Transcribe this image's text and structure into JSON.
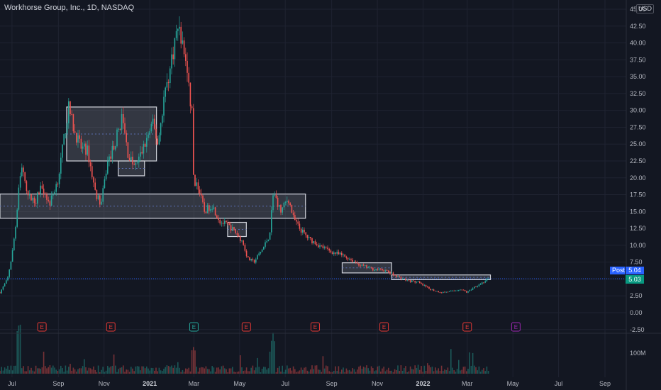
{
  "header": {
    "title": "Workhorse Group, Inc., 1D, NASDAQ",
    "currency": "USD"
  },
  "price_tags": {
    "post_label": "Post",
    "post_value": "5.04",
    "last_value": "5.03"
  },
  "colors": {
    "background": "#131722",
    "up": "#26a69a",
    "down": "#ef5350",
    "grid": "#1f2331",
    "zone_fill": "#787b86",
    "post_blue": "#2962ff",
    "earnings_red": "#e53935",
    "earnings_green": "#26a69a",
    "earnings_purple": "#9c27b0"
  },
  "chart_data": {
    "type": "candlestick",
    "title": "Workhorse Group, Inc., 1D, NASDAQ",
    "x_tick_labels": [
      "Jul",
      "Sep",
      "Nov",
      "2021",
      "Mar",
      "May",
      "Jul",
      "Sep",
      "Nov",
      "2022",
      "Mar",
      "May",
      "Jul",
      "Sep"
    ],
    "y_tick_labels": [
      "45.00",
      "42.50",
      "40.00",
      "37.50",
      "35.00",
      "32.50",
      "30.00",
      "27.50",
      "25.00",
      "22.50",
      "20.00",
      "17.50",
      "15.00",
      "12.50",
      "10.00",
      "7.50",
      "5.00",
      "2.50",
      "0.00",
      "-2.50"
    ],
    "y_range": [
      -2.5,
      45
    ],
    "volume_tick_label": "100M",
    "price_path": [
      [
        "2020-06-15",
        3.0
      ],
      [
        "2020-06-25",
        5.0
      ],
      [
        "2020-07-01",
        8.5
      ],
      [
        "2020-07-06",
        13.0
      ],
      [
        "2020-07-10",
        18.5
      ],
      [
        "2020-07-15",
        22.3
      ],
      [
        "2020-07-20",
        17.5
      ],
      [
        "2020-08-01",
        16.5
      ],
      [
        "2020-08-10",
        19.0
      ],
      [
        "2020-08-20",
        16.0
      ],
      [
        "2020-09-01",
        20.0
      ],
      [
        "2020-09-10",
        27.0
      ],
      [
        "2020-09-15",
        30.5
      ],
      [
        "2020-09-22",
        27.0
      ],
      [
        "2020-10-01",
        24.5
      ],
      [
        "2020-10-10",
        24.0
      ],
      [
        "2020-10-20",
        18.0
      ],
      [
        "2020-10-28",
        16.0
      ],
      [
        "2020-11-05",
        22.0
      ],
      [
        "2020-11-15",
        25.0
      ],
      [
        "2020-11-25",
        29.0
      ],
      [
        "2020-12-03",
        23.5
      ],
      [
        "2020-12-12",
        21.5
      ],
      [
        "2020-12-22",
        24.0
      ],
      [
        "2021-01-05",
        28.0
      ],
      [
        "2021-01-12",
        25.0
      ],
      [
        "2021-01-20",
        32.0
      ],
      [
        "2021-01-28",
        36.0
      ],
      [
        "2021-02-03",
        40.0
      ],
      [
        "2021-02-08",
        42.5
      ],
      [
        "2021-02-12",
        40.5
      ],
      [
        "2021-02-18",
        37.5
      ],
      [
        "2021-02-24",
        31.0
      ],
      [
        "2021-02-26",
        31.5
      ],
      [
        "2021-03-01",
        17.5
      ],
      [
        "2021-03-05",
        19.5
      ],
      [
        "2021-03-15",
        15.0
      ],
      [
        "2021-03-25",
        16.0
      ],
      [
        "2021-04-05",
        13.5
      ],
      [
        "2021-04-15",
        13.0
      ],
      [
        "2021-04-25",
        12.0
      ],
      [
        "2021-05-05",
        10.5
      ],
      [
        "2021-05-12",
        8.0
      ],
      [
        "2021-05-20",
        7.5
      ],
      [
        "2021-06-01",
        9.5
      ],
      [
        "2021-06-10",
        11.5
      ],
      [
        "2021-06-15",
        18.0
      ],
      [
        "2021-06-25",
        15.0
      ],
      [
        "2021-07-05",
        17.0
      ],
      [
        "2021-07-12",
        14.0
      ],
      [
        "2021-07-20",
        12.5
      ],
      [
        "2021-08-01",
        11.0
      ],
      [
        "2021-08-15",
        10.0
      ],
      [
        "2021-09-01",
        9.0
      ],
      [
        "2021-09-15",
        8.5
      ],
      [
        "2021-09-25",
        8.0
      ],
      [
        "2021-10-10",
        7.0
      ],
      [
        "2021-10-25",
        6.5
      ],
      [
        "2021-11-10",
        6.3
      ],
      [
        "2021-11-25",
        5.5
      ],
      [
        "2021-12-10",
        4.8
      ],
      [
        "2021-12-25",
        4.5
      ],
      [
        "2022-01-10",
        3.5
      ],
      [
        "2022-01-25",
        3.0
      ],
      [
        "2022-02-10",
        3.2
      ],
      [
        "2022-02-20",
        3.5
      ],
      [
        "2022-03-01",
        3.0
      ],
      [
        "2022-03-10",
        3.8
      ],
      [
        "2022-03-22",
        4.5
      ],
      [
        "2022-03-30",
        5.03
      ]
    ],
    "zones": [
      {
        "from": "2020-09-12",
        "to": "2021-01-10",
        "top": 30.5,
        "bottom": 22.5
      },
      {
        "from": "2020-11-20",
        "to": "2020-12-25",
        "top": 22.5,
        "bottom": 20.3
      },
      {
        "from": "2020-06-15",
        "to": "2021-07-28",
        "top": 17.6,
        "bottom": 14.0
      },
      {
        "from": "2021-04-15",
        "to": "2021-05-10",
        "top": 13.4,
        "bottom": 11.3
      },
      {
        "from": "2021-09-15",
        "to": "2021-11-20",
        "top": 7.4,
        "bottom": 5.9
      },
      {
        "from": "2021-11-20",
        "to": "2022-04-01",
        "top": 5.6,
        "bottom": 4.9
      }
    ],
    "reference_line": 5.03,
    "earnings_markers": [
      {
        "date": "2020-08-10",
        "label": "E",
        "color": "#e53935"
      },
      {
        "date": "2020-11-10",
        "label": "E",
        "color": "#e53935"
      },
      {
        "date": "2021-03-01",
        "label": "E",
        "color": "#26a69a"
      },
      {
        "date": "2021-05-10",
        "label": "E",
        "color": "#e53935"
      },
      {
        "date": "2021-08-10",
        "label": "E",
        "color": "#e53935"
      },
      {
        "date": "2021-11-10",
        "label": "E",
        "color": "#e53935"
      },
      {
        "date": "2022-03-01",
        "label": "E",
        "color": "#e53935"
      },
      {
        "date": "2022-05-05",
        "label": "E",
        "color": "#9c27b0"
      }
    ],
    "grid": true
  }
}
